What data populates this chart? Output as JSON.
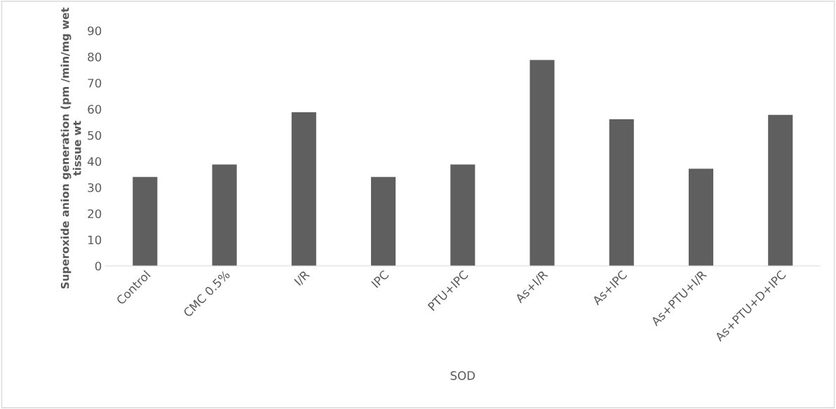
{
  "chart_data": {
    "type": "bar",
    "categories": [
      "Control",
      "CMC 0.5%",
      "I/R",
      "IPC",
      "PTU+IPC",
      "As+I/R",
      "As+IPC",
      "As+PTU+I/R",
      "As+PTU+D+IPC"
    ],
    "values": [
      34.0,
      38.8,
      58.8,
      34.0,
      38.8,
      78.8,
      56.1,
      37.2,
      57.8
    ],
    "color": "#5f5f5f",
    "xlabel": "SOD",
    "ylabel": "Superoxide anion generation (pm /min/mg wet tissue wt",
    "ylim": [
      0,
      90
    ],
    "yticks": [
      0,
      10,
      20,
      30,
      40,
      50,
      60,
      70,
      80,
      90
    ],
    "grid": false,
    "legend": false
  }
}
